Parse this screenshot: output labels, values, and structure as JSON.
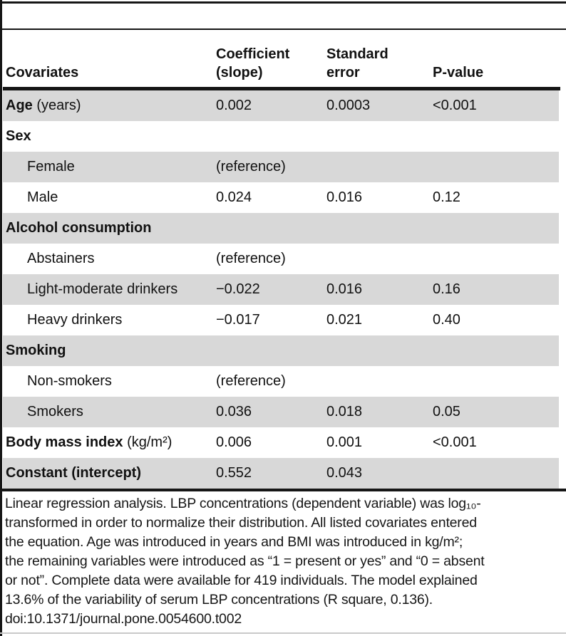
{
  "colors": {
    "row_shade": "#d8d8d8",
    "rule": "#161616",
    "text": "#111111"
  },
  "table": {
    "header": {
      "columns": [
        "Covariates",
        "Coefficient\n(slope)",
        "Standard\nerror",
        "P-value"
      ]
    },
    "rows": [
      {
        "label": "Age",
        "suffix": " (years)",
        "bold": true,
        "indent": false,
        "shaded": true,
        "coefficient": "0.002",
        "standard_error": "0.0003",
        "p_value": "<0.001"
      },
      {
        "label": "Sex",
        "suffix": "",
        "bold": true,
        "indent": false,
        "shaded": false,
        "coefficient": "",
        "standard_error": "",
        "p_value": ""
      },
      {
        "label": "Female",
        "suffix": "",
        "bold": false,
        "indent": true,
        "shaded": true,
        "coefficient": "(reference)",
        "standard_error": "",
        "p_value": ""
      },
      {
        "label": "Male",
        "suffix": "",
        "bold": false,
        "indent": true,
        "shaded": false,
        "coefficient": "0.024",
        "standard_error": "0.016",
        "p_value": "0.12"
      },
      {
        "label": "Alcohol consumption",
        "suffix": "",
        "bold": true,
        "indent": false,
        "shaded": true,
        "coefficient": "",
        "standard_error": "",
        "p_value": ""
      },
      {
        "label": "Abstainers",
        "suffix": "",
        "bold": false,
        "indent": true,
        "shaded": false,
        "coefficient": "(reference)",
        "standard_error": "",
        "p_value": ""
      },
      {
        "label": "Light-moderate drinkers",
        "suffix": "",
        "bold": false,
        "indent": true,
        "shaded": true,
        "coefficient": "−0.022",
        "standard_error": "0.016",
        "p_value": "0.16"
      },
      {
        "label": "Heavy drinkers",
        "suffix": "",
        "bold": false,
        "indent": true,
        "shaded": false,
        "coefficient": "−0.017",
        "standard_error": "0.021",
        "p_value": "0.40"
      },
      {
        "label": "Smoking",
        "suffix": "",
        "bold": true,
        "indent": false,
        "shaded": true,
        "coefficient": "",
        "standard_error": "",
        "p_value": ""
      },
      {
        "label": "Non-smokers",
        "suffix": "",
        "bold": false,
        "indent": true,
        "shaded": false,
        "coefficient": "(reference)",
        "standard_error": "",
        "p_value": ""
      },
      {
        "label": "Smokers",
        "suffix": "",
        "bold": false,
        "indent": true,
        "shaded": true,
        "coefficient": "0.036",
        "standard_error": "0.018",
        "p_value": "0.05"
      },
      {
        "label": "Body mass index",
        "suffix": " (kg/m²)",
        "bold": true,
        "indent": false,
        "shaded": false,
        "coefficient": "0.006",
        "standard_error": "0.001",
        "p_value": "<0.001"
      },
      {
        "label": "Constant (intercept)",
        "suffix": "",
        "bold": true,
        "indent": false,
        "shaded": true,
        "coefficient": "0.552",
        "standard_error": "0.043",
        "p_value": ""
      }
    ]
  },
  "footer": {
    "lines": [
      "Linear regression analysis. LBP concentrations (dependent variable) was log₁₀-",
      "transformed in order to normalize their distribution. All listed covariates entered",
      "the equation. Age was introduced in years and BMI was introduced in kg/m²;",
      "the remaining variables were introduced as “1 = present or yes” and “0 = absent",
      "or not”. Complete data were available for 419 individuals. The model explained",
      "13.6% of the variability of serum LBP concentrations (R square, 0.136)."
    ],
    "doi": "doi:10.1371/journal.pone.0054600.t002"
  }
}
